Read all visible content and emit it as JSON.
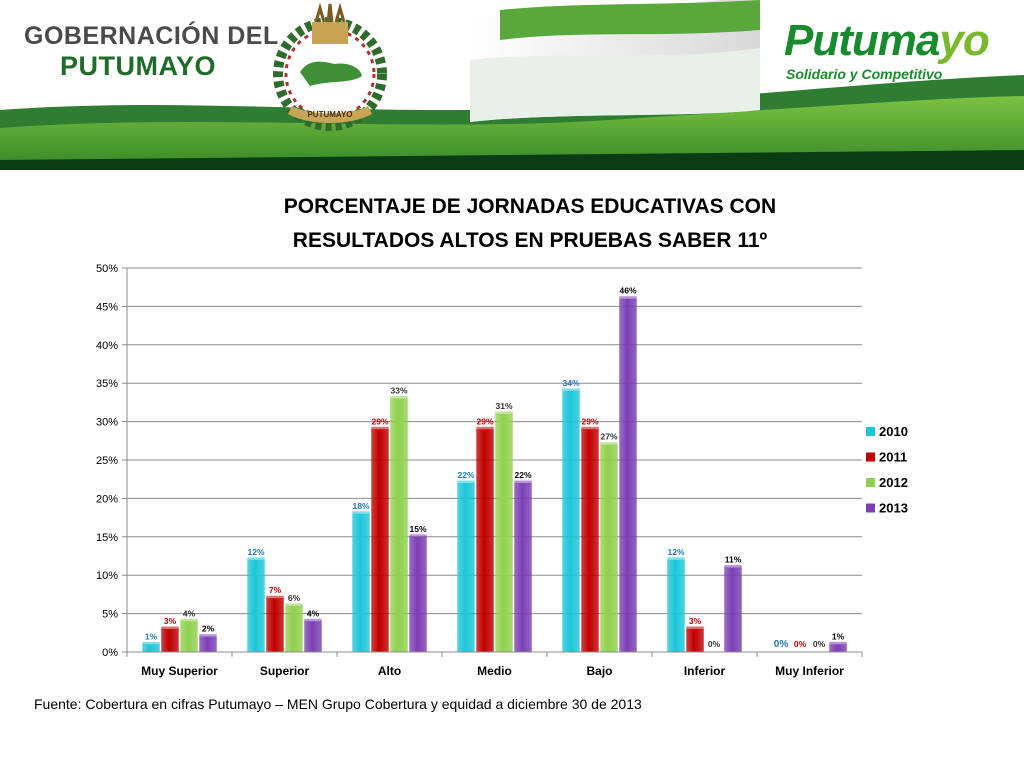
{
  "header": {
    "left_line1": "GOBERNACIÓN DEL",
    "left_line2": "PUTUMAYO",
    "right_word_a": "Putuma",
    "right_word_b": "yo",
    "right_slogan": "Solidario y Competitivo",
    "crest_ribbon": "PUTUMAYO",
    "colors": {
      "green_dark": "#1f6b2a",
      "green_light": "#7ab82c",
      "grey": "#4a4a4a"
    }
  },
  "chart_data": {
    "type": "bar",
    "title_line1": "PORCENTAJE DE JORNADAS EDUCATIVAS CON",
    "title_line2": "RESULTADOS ALTOS EN PRUEBAS SABER 11º",
    "categories": [
      "Muy Superior",
      "Superior",
      "Alto",
      "Medio",
      "Bajo",
      "Inferior",
      "Muy Inferior"
    ],
    "series": [
      {
        "name": "2010",
        "color": "#1cc6d8",
        "label_color": "#1f77b4",
        "values": [
          1,
          12,
          18,
          22,
          34,
          12,
          0
        ]
      },
      {
        "name": "2011",
        "color": "#c00000",
        "label_color": "#c00000",
        "values": [
          3,
          7,
          29,
          29,
          29,
          3,
          0
        ]
      },
      {
        "name": "2012",
        "color": "#8fd14f",
        "label_color": "#333333",
        "values": [
          4,
          6,
          33,
          31,
          27,
          0,
          0
        ]
      },
      {
        "name": "2013",
        "color": "#7b3fb3",
        "label_color": "#000000",
        "values": [
          2,
          4,
          15,
          22,
          46,
          11,
          1
        ]
      }
    ],
    "ylim": [
      0,
      50
    ],
    "yticks": [
      "0%",
      "5%",
      "10%",
      "15%",
      "20%",
      "25%",
      "30%",
      "35%",
      "40%",
      "45%",
      "50%"
    ],
    "grid": true,
    "legend_position": "right"
  },
  "source": "Fuente: Cobertura en cifras Putumayo – MEN Grupo Cobertura y equidad a diciembre 30 de 2013"
}
